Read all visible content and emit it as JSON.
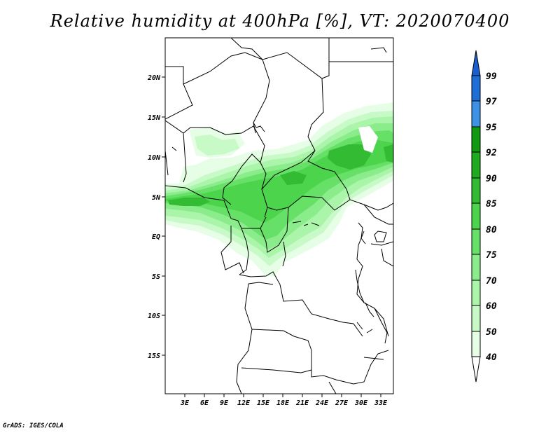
{
  "title": "Relative humidity at 400hPa [%], VT: 2020070400",
  "credit": "GrADS: IGES/COLA",
  "map": {
    "lon_range": [
      0,
      35
    ],
    "lat_range": [
      -20,
      25
    ],
    "lon_ticks": [
      "3E",
      "6E",
      "9E",
      "12E",
      "15E",
      "18E",
      "21E",
      "24E",
      "27E",
      "30E",
      "33E"
    ],
    "lat_ticks": [
      "20N",
      "15N",
      "10N",
      "5N",
      "EQ",
      "5S",
      "10S",
      "15S"
    ]
  },
  "colorbar": {
    "levels": [
      "99",
      "97",
      "95",
      "92",
      "90",
      "85",
      "80",
      "75",
      "70",
      "60",
      "50",
      "40"
    ],
    "colors": {
      "97-99": "#1f6fd8",
      "95-97": "#3d92e6",
      "92-95": "#119911",
      "90-92": "#1faa1f",
      "85-90": "#33bb33",
      "80-85": "#4cd44c",
      "75-80": "#66e066",
      "70-75": "#8aec8a",
      "60-70": "#aaf5aa",
      "50-60": "#c8fac8",
      "40-50": "#e6fde6",
      "top": "#1a5fd0"
    }
  }
}
